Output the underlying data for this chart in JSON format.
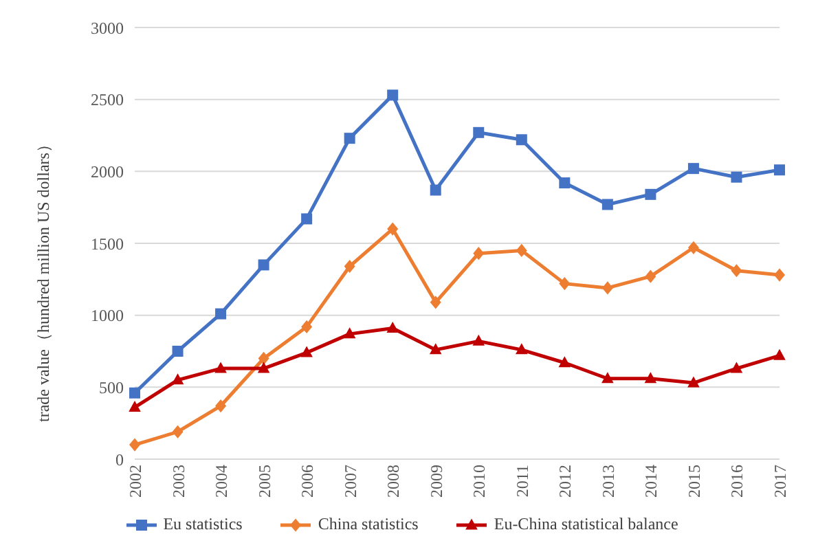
{
  "chart_data": {
    "type": "line",
    "ylabel": "trade value（hundred million US dollars）",
    "categories": [
      "2002",
      "2003",
      "2004",
      "2005",
      "2006",
      "2007",
      "2008",
      "2009",
      "2010",
      "2011",
      "2012",
      "2013",
      "2014",
      "2015",
      "2016",
      "2017"
    ],
    "series": [
      {
        "name": "Eu statistics",
        "color": "#4472c4",
        "marker": "square",
        "values": [
          460,
          750,
          1010,
          1350,
          1670,
          2230,
          2530,
          1870,
          2270,
          2220,
          1920,
          1770,
          1840,
          2020,
          1960,
          2010
        ]
      },
      {
        "name": "China statistics",
        "color": "#ed7d31",
        "marker": "diamond",
        "values": [
          100,
          190,
          370,
          700,
          920,
          1340,
          1600,
          1090,
          1430,
          1450,
          1220,
          1190,
          1270,
          1470,
          1310,
          1280
        ]
      },
      {
        "name": "Eu-China statistical balance",
        "color": "#c00000",
        "marker": "triangle",
        "values": [
          360,
          550,
          630,
          630,
          740,
          870,
          910,
          760,
          820,
          760,
          670,
          560,
          560,
          530,
          630,
          720
        ]
      }
    ],
    "ylim": [
      0,
      3000
    ],
    "yticks": [
      0,
      500,
      1000,
      1500,
      2000,
      2500,
      3000
    ],
    "grid": "y",
    "legend": "bottom",
    "line_style": "solid"
  }
}
